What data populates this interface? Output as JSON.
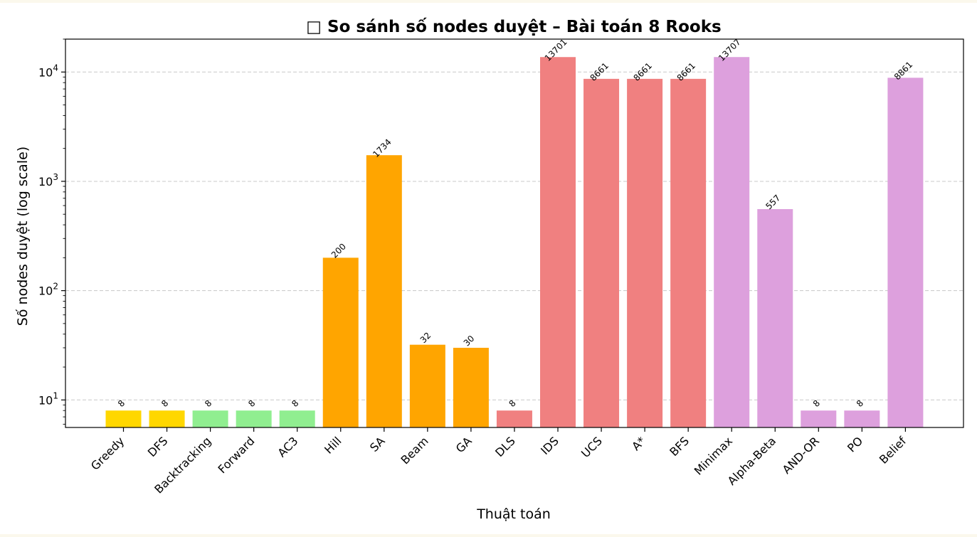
{
  "chart_data": {
    "type": "bar",
    "title": "□ So sánh số nodes duyệt – Bài toán 8 Rooks",
    "xlabel": "Thuật toán",
    "ylabel": "Số nodes duyệt (log scale)",
    "y_scale": "log",
    "ylim": [
      5.6,
      20000
    ],
    "y_ticks": [
      {
        "value": 10,
        "base": "10",
        "exp": "1"
      },
      {
        "value": 100,
        "base": "10",
        "exp": "2"
      },
      {
        "value": 1000,
        "base": "10",
        "exp": "3"
      },
      {
        "value": 10000,
        "base": "10",
        "exp": "4"
      }
    ],
    "grid": "y, dashed",
    "categories": [
      "Greedy",
      "DFS",
      "Backtracking",
      "Forward",
      "AC3",
      "Hill",
      "SA",
      "Beam",
      "GA",
      "DLS",
      "IDS",
      "UCS",
      "A*",
      "BFS",
      "Minimax",
      "Alpha-Beta",
      "AND-OR",
      "PO",
      "Belief"
    ],
    "values": [
      8,
      8,
      8,
      8,
      8,
      200,
      1734,
      32,
      30,
      8,
      13701,
      8661,
      8661,
      8661,
      13707,
      557,
      8,
      8,
      8861
    ],
    "value_labels": [
      "8",
      "8",
      "8",
      "8",
      "8",
      "200",
      "1734",
      "32",
      "30",
      "8",
      "13701",
      "8661",
      "8661",
      "8661",
      "13707",
      "557",
      "8",
      "8",
      "8861"
    ],
    "bar_colors": [
      "#ffd700",
      "#ffd700",
      "#90ee90",
      "#90ee90",
      "#90ee90",
      "#ffa500",
      "#ffa500",
      "#ffa500",
      "#ffa500",
      "#f08080",
      "#f08080",
      "#f08080",
      "#f08080",
      "#f08080",
      "#dda0dd",
      "#dda0dd",
      "#dda0dd",
      "#dda0dd",
      "#dda0dd"
    ]
  }
}
